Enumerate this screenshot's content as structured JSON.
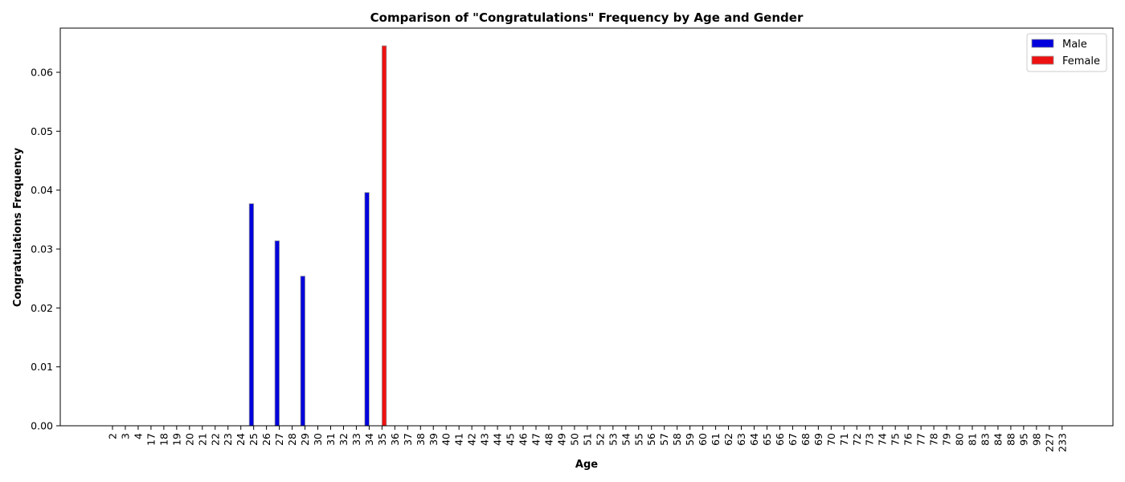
{
  "chart_data": {
    "type": "bar",
    "title": "Comparison of \"Congratulations\" Frequency by Age and Gender",
    "xlabel": "Age",
    "ylabel": "Congratulations Frequency",
    "ylim": [
      0,
      0.0675
    ],
    "yticks": [
      0.0,
      0.01,
      0.02,
      0.03,
      0.04,
      0.05,
      0.06
    ],
    "ytick_labels": [
      "0.00",
      "0.01",
      "0.02",
      "0.03",
      "0.04",
      "0.05",
      "0.06"
    ],
    "grid": false,
    "legend_position": "top-right",
    "categories": [
      "2",
      "3",
      "4",
      "17",
      "18",
      "19",
      "20",
      "21",
      "22",
      "23",
      "24",
      "25",
      "26",
      "27",
      "28",
      "29",
      "30",
      "31",
      "32",
      "33",
      "34",
      "35",
      "36",
      "37",
      "38",
      "39",
      "40",
      "41",
      "42",
      "43",
      "44",
      "45",
      "46",
      "47",
      "48",
      "49",
      "50",
      "51",
      "52",
      "53",
      "54",
      "55",
      "56",
      "57",
      "58",
      "59",
      "60",
      "61",
      "62",
      "63",
      "64",
      "65",
      "66",
      "67",
      "68",
      "69",
      "70",
      "71",
      "72",
      "73",
      "74",
      "75",
      "76",
      "77",
      "78",
      "79",
      "80",
      "81",
      "83",
      "84",
      "88",
      "95",
      "98",
      "227",
      "233"
    ],
    "series": [
      {
        "name": "Male",
        "color": "#0000dd",
        "values": [
          0,
          0,
          0,
          0,
          0,
          0,
          0,
          0,
          0,
          0,
          0,
          0.0377,
          0,
          0.0314,
          0,
          0.0254,
          0,
          0,
          0,
          0,
          0.0396,
          0,
          0,
          0,
          0,
          0,
          0,
          0,
          0,
          0,
          0,
          0,
          0,
          0,
          0,
          0,
          0,
          0,
          0,
          0,
          0,
          0,
          0,
          0,
          0,
          0,
          0,
          0,
          0,
          0,
          0,
          0,
          0,
          0,
          0,
          0,
          0,
          0,
          0,
          0,
          0,
          0,
          0,
          0,
          0,
          0,
          0,
          0,
          0,
          0,
          0,
          0,
          0,
          0,
          0
        ]
      },
      {
        "name": "Female",
        "color": "#ee1111",
        "values": [
          0,
          0,
          0,
          0,
          0,
          0,
          0,
          0,
          0,
          0,
          0,
          0,
          0,
          0,
          0,
          0,
          0,
          0,
          0,
          0,
          0,
          0.0645,
          0,
          0,
          0,
          0,
          0,
          0,
          0,
          0,
          0,
          0,
          0,
          0,
          0,
          0,
          0,
          0,
          0,
          0,
          0,
          0,
          0,
          0,
          0,
          0,
          0,
          0,
          0,
          0,
          0,
          0,
          0,
          0,
          0,
          0,
          0,
          0,
          0,
          0,
          0,
          0,
          0,
          0,
          0,
          0,
          0,
          0,
          0,
          0,
          0,
          0,
          0,
          0,
          0
        ]
      }
    ]
  }
}
